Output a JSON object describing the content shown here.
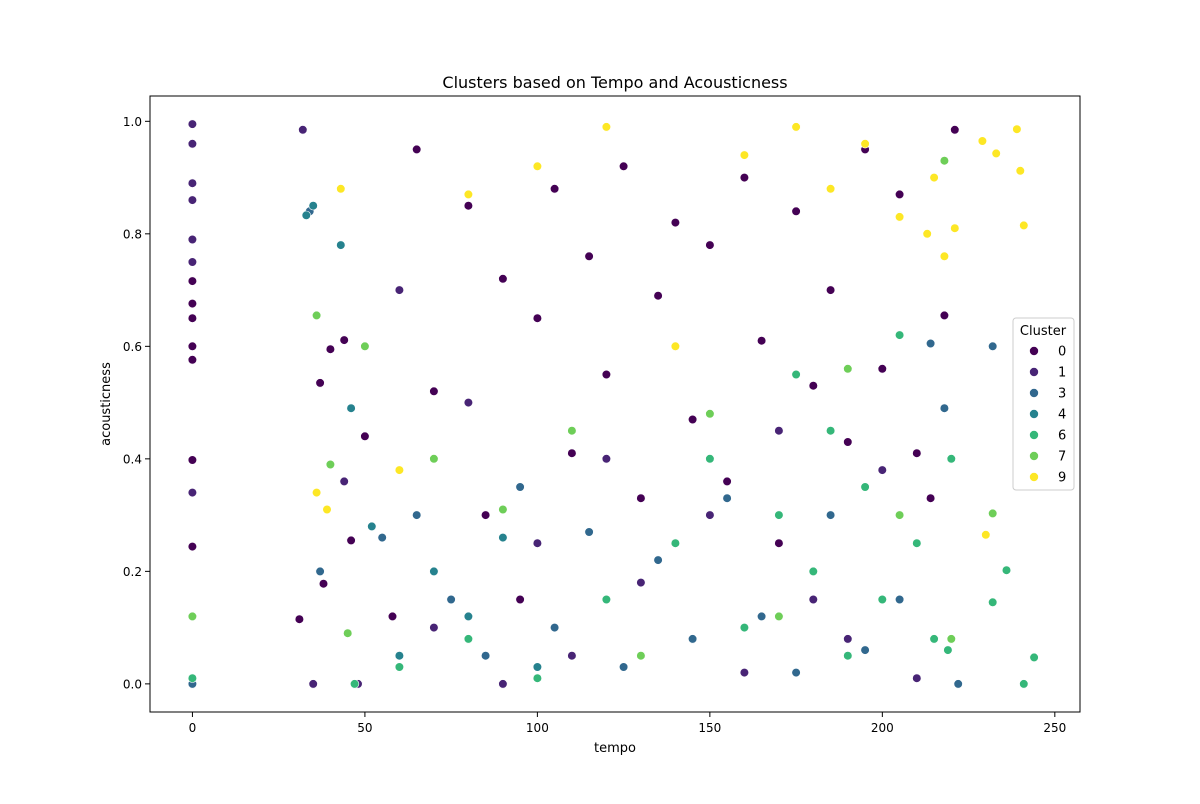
{
  "chart_data": {
    "type": "scatter",
    "title": "Clusters based on Tempo and Acousticness",
    "xlabel": "tempo",
    "ylabel": "acousticness",
    "xlim": [
      -12.3,
      257.3
    ],
    "ylim": [
      -0.05,
      1.045
    ],
    "xticks": [
      0,
      50,
      100,
      150,
      200,
      250
    ],
    "xtick_labels": [
      "0",
      "50",
      "100",
      "150",
      "200",
      "250"
    ],
    "yticks": [
      0.0,
      0.2,
      0.4,
      0.6,
      0.8,
      1.0
    ],
    "ytick_labels": [
      "0.0",
      "0.2",
      "0.4",
      "0.6",
      "0.8",
      "1.0"
    ],
    "grid": false,
    "legend": {
      "title": "Cluster",
      "placement": "center-right"
    },
    "palette": "viridis",
    "series": [
      {
        "name": "0",
        "color": "#440154",
        "points": [
          [
            0,
            0.716
          ],
          [
            0,
            0.676
          ],
          [
            0,
            0.65
          ],
          [
            0,
            0.6
          ],
          [
            0,
            0.576
          ],
          [
            0,
            0.398
          ],
          [
            0,
            0.244
          ],
          [
            31,
            0.115
          ],
          [
            37,
            0.535
          ],
          [
            38,
            0.178
          ],
          [
            40,
            0.595
          ],
          [
            44,
            0.611
          ],
          [
            46,
            0.255
          ],
          [
            50,
            0.44
          ],
          [
            58,
            0.12
          ],
          [
            65,
            0.95
          ],
          [
            70,
            0.52
          ],
          [
            80,
            0.85
          ],
          [
            85,
            0.3
          ],
          [
            90,
            0.72
          ],
          [
            95,
            0.15
          ],
          [
            100,
            0.65
          ],
          [
            105,
            0.88
          ],
          [
            110,
            0.41
          ],
          [
            115,
            0.76
          ],
          [
            120,
            0.55
          ],
          [
            125,
            0.92
          ],
          [
            130,
            0.33
          ],
          [
            135,
            0.69
          ],
          [
            140,
            0.82
          ],
          [
            145,
            0.47
          ],
          [
            150,
            0.78
          ],
          [
            155,
            0.36
          ],
          [
            160,
            0.9
          ],
          [
            165,
            0.61
          ],
          [
            170,
            0.25
          ],
          [
            175,
            0.84
          ],
          [
            180,
            0.53
          ],
          [
            185,
            0.7
          ],
          [
            190,
            0.43
          ],
          [
            195,
            0.95
          ],
          [
            200,
            0.56
          ],
          [
            205,
            0.87
          ],
          [
            210,
            0.41
          ],
          [
            214,
            0.33
          ],
          [
            218,
            0.655
          ],
          [
            221,
            0.985
          ]
        ]
      },
      {
        "name": "1",
        "color": "#482475",
        "points": [
          [
            0,
            0.995
          ],
          [
            0,
            0.96
          ],
          [
            0,
            0.89
          ],
          [
            0,
            0.86
          ],
          [
            0,
            0.79
          ],
          [
            0,
            0.75
          ],
          [
            0,
            0.34
          ],
          [
            0,
            0.12
          ],
          [
            32,
            0.985
          ],
          [
            35,
            0.0
          ],
          [
            44,
            0.36
          ],
          [
            48,
            0.0
          ],
          [
            60,
            0.7
          ],
          [
            70,
            0.1
          ],
          [
            80,
            0.5
          ],
          [
            90,
            0.0
          ],
          [
            100,
            0.25
          ],
          [
            110,
            0.05
          ],
          [
            120,
            0.4
          ],
          [
            130,
            0.18
          ],
          [
            140,
            0.6
          ],
          [
            150,
            0.3
          ],
          [
            160,
            0.02
          ],
          [
            170,
            0.45
          ],
          [
            180,
            0.15
          ],
          [
            190,
            0.08
          ],
          [
            200,
            0.38
          ],
          [
            210,
            0.01
          ]
        ]
      },
      {
        "name": "3",
        "color": "#31688e",
        "points": [
          [
            0,
            0.0
          ],
          [
            34,
            0.84
          ],
          [
            37,
            0.2
          ],
          [
            55,
            0.26
          ],
          [
            65,
            0.3
          ],
          [
            75,
            0.15
          ],
          [
            85,
            0.05
          ],
          [
            95,
            0.35
          ],
          [
            105,
            0.1
          ],
          [
            115,
            0.27
          ],
          [
            125,
            0.03
          ],
          [
            135,
            0.22
          ],
          [
            145,
            0.08
          ],
          [
            155,
            0.33
          ],
          [
            165,
            0.12
          ],
          [
            175,
            0.02
          ],
          [
            185,
            0.3
          ],
          [
            195,
            0.06
          ],
          [
            205,
            0.15
          ],
          [
            214,
            0.605
          ],
          [
            218,
            0.49
          ],
          [
            222,
            0.0
          ],
          [
            232,
            0.6
          ]
        ]
      },
      {
        "name": "4",
        "color": "#26828e",
        "points": [
          [
            33,
            0.833
          ],
          [
            35,
            0.85
          ],
          [
            43,
            0.78
          ],
          [
            46,
            0.49
          ],
          [
            52,
            0.28
          ],
          [
            60,
            0.05
          ],
          [
            70,
            0.2
          ],
          [
            80,
            0.12
          ],
          [
            90,
            0.26
          ],
          [
            100,
            0.03
          ]
        ]
      },
      {
        "name": "6",
        "color": "#35b779",
        "points": [
          [
            0,
            0.01
          ],
          [
            47,
            0.0
          ],
          [
            60,
            0.03
          ],
          [
            80,
            0.08
          ],
          [
            100,
            0.01
          ],
          [
            120,
            0.15
          ],
          [
            140,
            0.25
          ],
          [
            150,
            0.4
          ],
          [
            160,
            0.1
          ],
          [
            170,
            0.3
          ],
          [
            175,
            0.55
          ],
          [
            180,
            0.2
          ],
          [
            185,
            0.45
          ],
          [
            190,
            0.05
          ],
          [
            195,
            0.35
          ],
          [
            200,
            0.15
          ],
          [
            205,
            0.62
          ],
          [
            210,
            0.25
          ],
          [
            215,
            0.08
          ],
          [
            219,
            0.06
          ],
          [
            220,
            0.4
          ],
          [
            232,
            0.145
          ],
          [
            236,
            0.202
          ],
          [
            241,
            0.0
          ],
          [
            244,
            0.047
          ]
        ]
      },
      {
        "name": "7",
        "color": "#6ece58",
        "points": [
          [
            0,
            0.12
          ],
          [
            36,
            0.655
          ],
          [
            40,
            0.39
          ],
          [
            45,
            0.09
          ],
          [
            50,
            0.6
          ],
          [
            70,
            0.4
          ],
          [
            90,
            0.31
          ],
          [
            110,
            0.45
          ],
          [
            130,
            0.05
          ],
          [
            150,
            0.48
          ],
          [
            170,
            0.12
          ],
          [
            190,
            0.56
          ],
          [
            205,
            0.3
          ],
          [
            218,
            0.93
          ],
          [
            220,
            0.08
          ],
          [
            232,
            0.303
          ]
        ]
      },
      {
        "name": "9",
        "color": "#fde725",
        "points": [
          [
            36,
            0.34
          ],
          [
            39,
            0.31
          ],
          [
            43,
            0.88
          ],
          [
            60,
            0.38
          ],
          [
            80,
            0.87
          ],
          [
            100,
            0.92
          ],
          [
            120,
            0.99
          ],
          [
            140,
            0.6
          ],
          [
            160,
            0.94
          ],
          [
            175,
            0.99
          ],
          [
            185,
            0.88
          ],
          [
            195,
            0.96
          ],
          [
            205,
            0.83
          ],
          [
            213,
            0.8
          ],
          [
            215,
            0.9
          ],
          [
            218,
            0.76
          ],
          [
            221,
            0.81
          ],
          [
            229,
            0.965
          ],
          [
            230,
            0.265
          ],
          [
            233,
            0.943
          ],
          [
            239,
            0.986
          ],
          [
            240,
            0.912
          ],
          [
            241,
            0.815
          ]
        ]
      }
    ]
  }
}
